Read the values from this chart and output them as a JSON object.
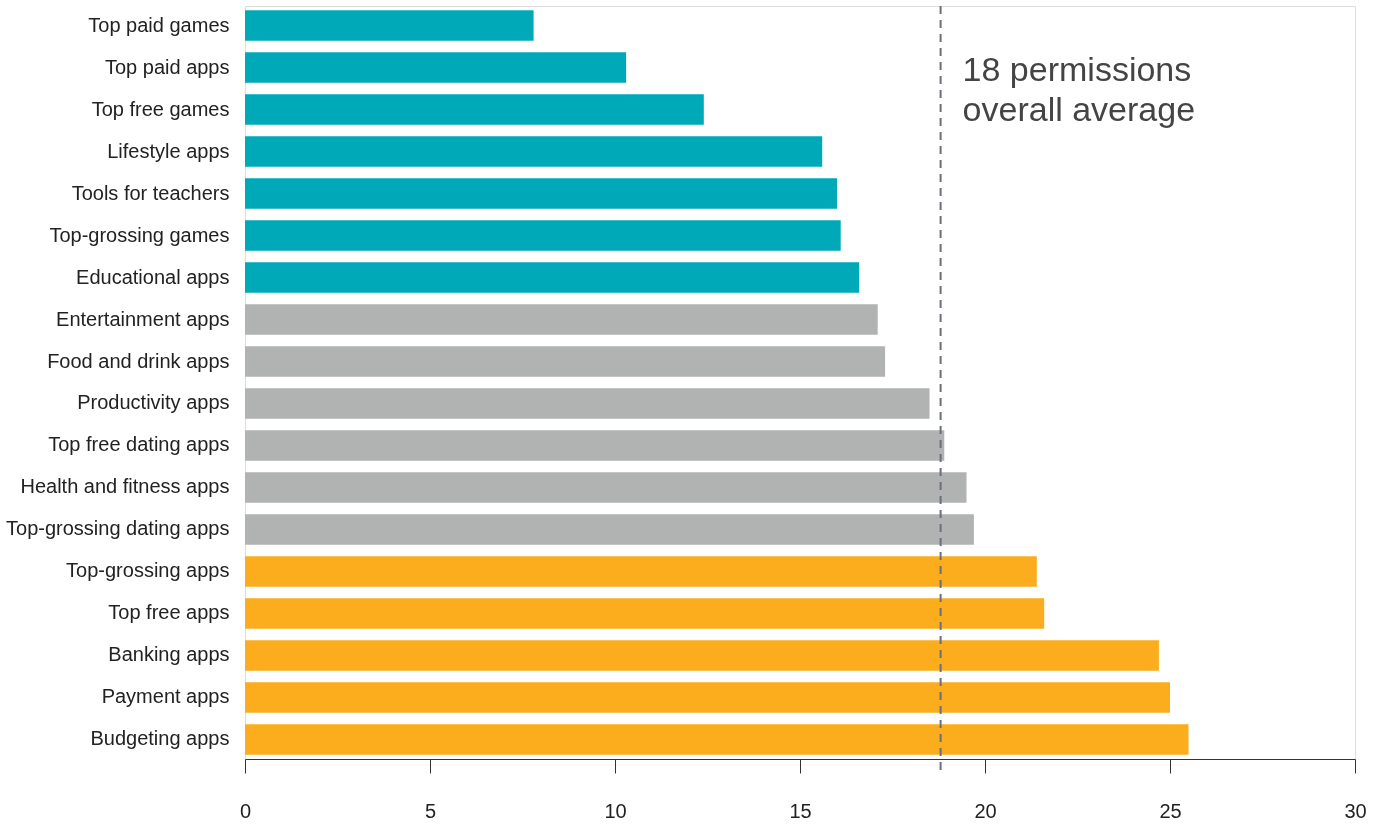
{
  "chart_data": {
    "type": "bar",
    "orientation": "horizontal",
    "categories": [
      "Top paid games",
      "Top paid apps",
      "Top free games",
      "Lifestyle apps",
      "Tools for teachers",
      "Top-grossing games",
      "Educational apps",
      "Entertainment apps",
      "Food and drink apps",
      "Productivity apps",
      "Top free dating apps",
      "Health and fitness apps",
      "Top-grossing dating apps",
      "Top-grossing apps",
      "Top free apps",
      "Banking apps",
      "Payment apps",
      "Budgeting apps"
    ],
    "values": [
      7.8,
      10.3,
      12.4,
      15.6,
      16.0,
      16.1,
      16.6,
      17.1,
      17.3,
      18.5,
      18.9,
      19.5,
      19.7,
      21.4,
      21.6,
      24.7,
      25.0,
      25.5
    ],
    "colors": [
      "#00a9b7",
      "#00a9b7",
      "#00a9b7",
      "#00a9b7",
      "#00a9b7",
      "#00a9b7",
      "#00a9b7",
      "#b1b2b2",
      "#b1b2b2",
      "#b1b2b2",
      "#b1b2b2",
      "#b1b2b2",
      "#b1b2b2",
      "#fbad1d",
      "#fbad1d",
      "#fbad1d",
      "#fbad1d",
      "#fbad1d"
    ],
    "xlim": [
      0,
      30
    ],
    "xticks": [
      0,
      5,
      10,
      15,
      20,
      25,
      30
    ],
    "grid": false,
    "ref_lines": [
      {
        "axis": "x",
        "value": 18.8,
        "label": "18 permissions\noverall average",
        "color": "#6b6f7b",
        "line_style": "dashed"
      }
    ]
  }
}
